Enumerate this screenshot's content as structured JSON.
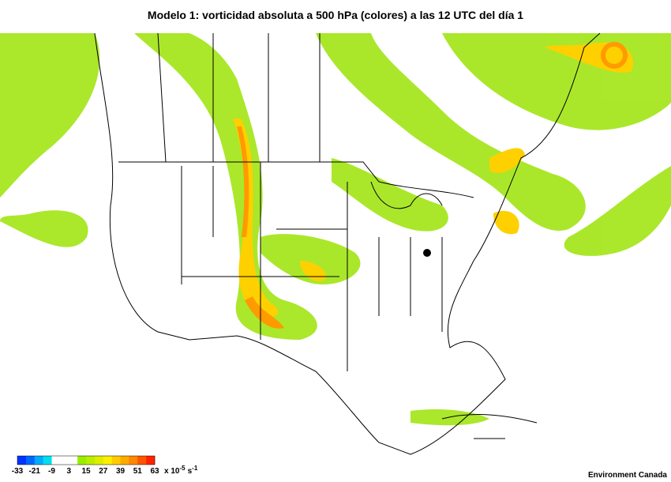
{
  "title": "Modelo 1: vorticidad absoluta a 500 hPa (colores) a las 12 UTC del día 1",
  "colorbar": {
    "ticks": [
      -33,
      -21,
      -9,
      3,
      15,
      27,
      39,
      51,
      63
    ],
    "colors": [
      "#0033ff",
      "#0066ff",
      "#00aaff",
      "#00ddee",
      "#ffffff",
      "#ffffff",
      "#ffffff",
      "#99ee00",
      "#bbee00",
      "#ddee00",
      "#ffee00",
      "#ffcc00",
      "#ffaa00",
      "#ff8800",
      "#ff5500",
      "#ff2200"
    ],
    "unit": {
      "base": "x 10",
      "exp": "-5",
      "unit": "s",
      "unit_exp": "-1"
    }
  },
  "credit": "Environment Canada"
}
